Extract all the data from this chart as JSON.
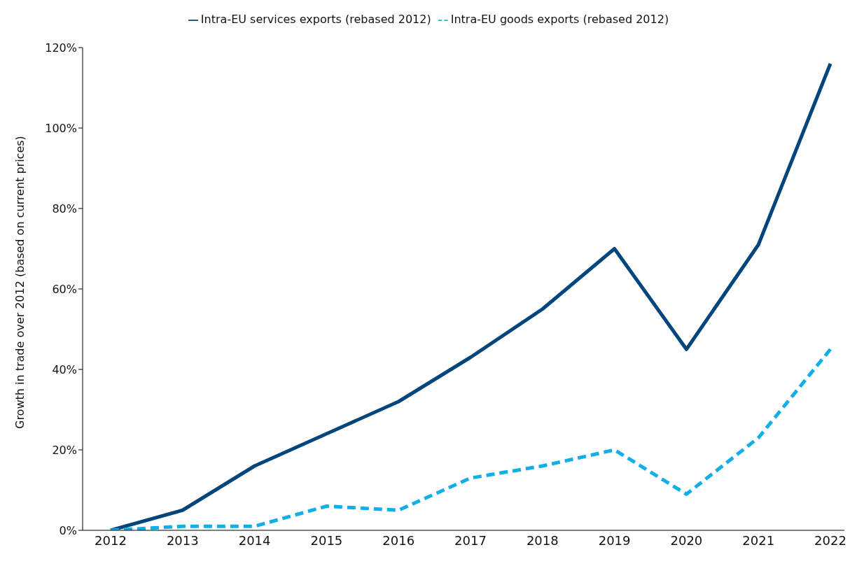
{
  "chart_data": {
    "type": "line",
    "ylabel": "Growth in trade over 2012 (based on current prices)",
    "categories": [
      "2012",
      "2013",
      "2014",
      "2015",
      "2016",
      "2017",
      "2018",
      "2019",
      "2020",
      "2021",
      "2022"
    ],
    "series": [
      {
        "name": "Intra-EU services exports (rebased 2012)",
        "color": "#00457c",
        "line_style": "solid",
        "values": [
          0,
          5,
          16,
          24,
          32,
          43,
          55,
          70,
          45,
          71,
          116
        ]
      },
      {
        "name": "Intra-EU goods exports (rebased 2012)",
        "color": "#12aee8",
        "line_style": "dashed",
        "values": [
          0,
          1,
          1,
          6,
          5,
          13,
          16,
          20,
          9,
          23,
          45
        ]
      }
    ],
    "ylim": [
      0,
      120
    ],
    "yticks": [
      {
        "value": 0,
        "label": "0%"
      },
      {
        "value": 20,
        "label": "20%"
      },
      {
        "value": 40,
        "label": "40%"
      },
      {
        "value": 60,
        "label": "60%"
      },
      {
        "value": 80,
        "label": "80%"
      },
      {
        "value": 100,
        "label": "100%"
      },
      {
        "value": 120,
        "label": "120%"
      }
    ],
    "grid": false,
    "legend": "top",
    "marker": "none"
  }
}
